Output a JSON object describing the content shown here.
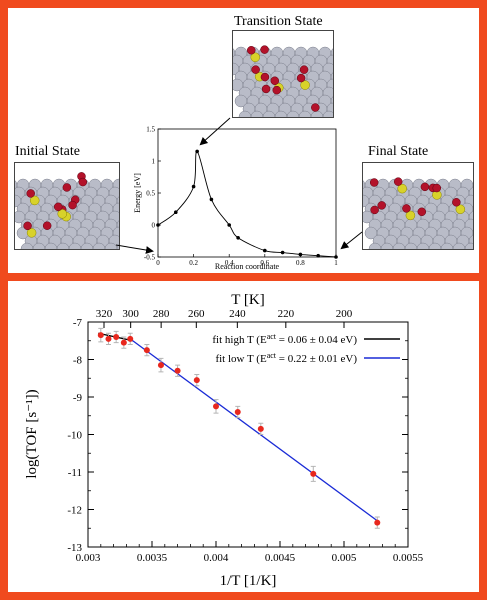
{
  "top": {
    "labels": {
      "initial": "Initial State",
      "transition": "Transition State",
      "final": "Final State"
    },
    "energy_plot": {
      "ylabel": "Energy [eV]",
      "xlabel": "Reaction coordinate",
      "yticks": [
        "-0.5",
        "0",
        "0.5",
        "1",
        "1.5"
      ],
      "xticks": [
        "0",
        "0.2",
        "0.4",
        "0.6",
        "0.8",
        "1"
      ]
    }
  },
  "colors": {
    "frame": "#f04a1e",
    "high_t_fit": "#000000",
    "low_t_fit": "#1a2bd6",
    "data_points": "#e8281e"
  },
  "chart_data": [
    {
      "type": "line",
      "title": "",
      "xlabel": "Reaction coordinate",
      "ylabel": "Energy [eV]",
      "xlim": [
        0,
        1
      ],
      "ylim": [
        -0.5,
        1.5
      ],
      "x": [
        0,
        0.1,
        0.2,
        0.22,
        0.3,
        0.4,
        0.45,
        0.6,
        0.7,
        0.8,
        0.9,
        1.0
      ],
      "y": [
        0,
        0.2,
        0.6,
        1.15,
        0.4,
        0.0,
        -0.2,
        -0.4,
        -0.43,
        -0.46,
        -0.48,
        -0.5
      ]
    },
    {
      "type": "scatter",
      "title": "",
      "xlabel": "1/T [1/K]",
      "ylabel": "log(TOF [s⁻¹])",
      "top_xlabel": "T [K]",
      "xlim": [
        0.003,
        0.0055
      ],
      "ylim": [
        -13,
        -7
      ],
      "xticks": [
        "0.003",
        "0.0035",
        "0.004",
        "0.0045",
        "0.005",
        "0.0055"
      ],
      "yticks": [
        "-13",
        "-12",
        "-11",
        "-10",
        "-9",
        "-8",
        "-7"
      ],
      "top_ticks": [
        320,
        300,
        280,
        260,
        240,
        220,
        200
      ],
      "points": {
        "x": [
          0.0031,
          0.00316,
          0.00322,
          0.00328,
          0.00333,
          0.00346,
          0.00357,
          0.0037,
          0.00385,
          0.004,
          0.00417,
          0.00435,
          0.00476,
          0.00526
        ],
        "y": [
          -7.35,
          -7.45,
          -7.4,
          -7.55,
          -7.45,
          -7.75,
          -8.15,
          -8.3,
          -8.55,
          -9.25,
          -9.4,
          -9.85,
          -11.05,
          -12.35
        ],
        "err": [
          0.18,
          0.15,
          0.15,
          0.15,
          0.15,
          0.15,
          0.18,
          0.15,
          0.15,
          0.18,
          0.15,
          0.15,
          0.2,
          0.15
        ]
      },
      "series": [
        {
          "name": "fit high T (Eᵃᶜᵗ = 0.06 ± 0.04 eV)",
          "x": [
            0.00308,
            0.00335
          ],
          "y": [
            -7.3,
            -7.5
          ]
        },
        {
          "name": "fit low T (Eᵃᶜᵗ = 0.22 ± 0.01 eV)",
          "x": [
            0.00333,
            0.00526
          ],
          "y": [
            -7.45,
            -12.3
          ]
        }
      ],
      "legend_position": "top-right",
      "legend": [
        {
          "text": "fit high T (E",
          "sup": "act",
          "rest": " = 0.06 ± 0.04 eV)"
        },
        {
          "text": "fit low T (E",
          "sup": "act",
          "rest": " = 0.22 ± 0.01 eV)"
        }
      ]
    }
  ]
}
